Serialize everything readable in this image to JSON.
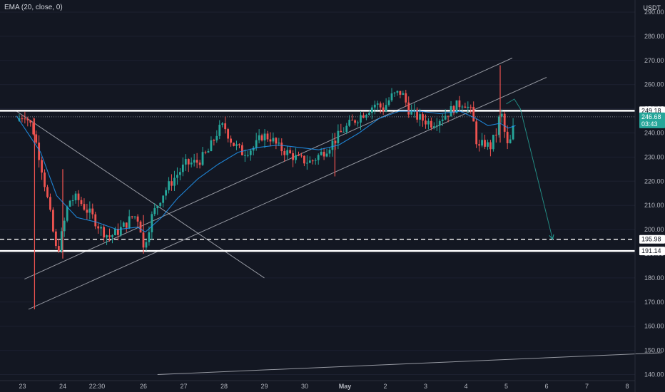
{
  "indicator_label": "EMA (20, close, 0)",
  "currency_label": "USDT",
  "price_tags": {
    "resistance": "249.18",
    "current": "246.68",
    "countdown": "03:43",
    "support_dashed": "195.98",
    "support": "191.14"
  },
  "colors": {
    "background": "#131722",
    "up": "#26a69a",
    "down": "#ef5350",
    "ema": "#2196f3",
    "level": "#ffffff",
    "arrow": "#26a69a"
  },
  "chart_data": {
    "type": "candlestick",
    "ylim": [
      137.5,
      295
    ],
    "y_ticks": [
      140,
      150,
      160,
      170,
      180,
      190,
      200,
      210,
      220,
      230,
      240,
      250,
      260,
      270,
      280,
      290
    ],
    "x_ticks": [
      {
        "label": "23",
        "t": 0.15
      },
      {
        "label": "24",
        "t": 1.15
      },
      {
        "label": "22:30",
        "t": 2.0
      },
      {
        "label": "26",
        "t": 3.15
      },
      {
        "label": "27",
        "t": 4.15
      },
      {
        "label": "28",
        "t": 5.15
      },
      {
        "label": "29",
        "t": 6.15
      },
      {
        "label": "30",
        "t": 7.15
      },
      {
        "label": "May",
        "t": 8.15
      },
      {
        "label": "2",
        "t": 9.15
      },
      {
        "label": "3",
        "t": 10.15
      },
      {
        "label": "4",
        "t": 11.15
      },
      {
        "label": "5",
        "t": 12.15
      },
      {
        "label": "6",
        "t": 13.15
      },
      {
        "label": "7",
        "t": 14.15
      },
      {
        "label": "8",
        "t": 15.15
      }
    ],
    "price_path": [
      [
        0.0,
        245
      ],
      [
        0.2,
        248
      ],
      [
        0.4,
        242
      ],
      [
        0.6,
        228
      ],
      [
        0.8,
        210
      ],
      [
        1.0,
        190
      ],
      [
        1.1,
        196
      ],
      [
        1.3,
        212
      ],
      [
        1.5,
        213
      ],
      [
        1.7,
        209
      ],
      [
        1.9,
        205
      ],
      [
        2.1,
        200
      ],
      [
        2.3,
        197
      ],
      [
        2.5,
        199
      ],
      [
        2.7,
        202
      ],
      [
        2.9,
        206
      ],
      [
        3.05,
        204
      ],
      [
        3.15,
        192
      ],
      [
        3.35,
        205
      ],
      [
        3.6,
        214
      ],
      [
        3.9,
        221
      ],
      [
        4.2,
        227
      ],
      [
        4.5,
        228
      ],
      [
        4.75,
        232
      ],
      [
        5.0,
        241
      ],
      [
        5.15,
        243
      ],
      [
        5.35,
        236
      ],
      [
        5.6,
        232
      ],
      [
        5.9,
        234
      ],
      [
        6.1,
        239
      ],
      [
        6.3,
        238
      ],
      [
        6.5,
        234
      ],
      [
        6.7,
        232
      ],
      [
        7.0,
        229
      ],
      [
        7.3,
        228
      ],
      [
        7.6,
        232
      ],
      [
        7.9,
        237
      ],
      [
        8.1,
        241
      ],
      [
        8.3,
        244
      ],
      [
        8.6,
        248
      ],
      [
        8.9,
        252
      ],
      [
        9.1,
        250
      ],
      [
        9.3,
        255
      ],
      [
        9.55,
        257
      ],
      [
        9.75,
        249
      ],
      [
        10.0,
        246
      ],
      [
        10.3,
        244
      ],
      [
        10.6,
        247
      ],
      [
        10.9,
        251
      ],
      [
        11.1,
        253
      ],
      [
        11.3,
        248
      ],
      [
        11.45,
        233
      ],
      [
        11.6,
        236
      ],
      [
        11.75,
        234
      ],
      [
        11.95,
        242
      ],
      [
        12.0,
        251
      ],
      [
        12.1,
        241
      ],
      [
        12.2,
        233
      ],
      [
        12.3,
        240
      ],
      [
        12.38,
        246.68
      ]
    ],
    "wicks": [
      {
        "t": 0.45,
        "low": 167,
        "high": 246
      },
      {
        "t": 1.15,
        "low": 188,
        "high": 225
      },
      {
        "t": 3.15,
        "low": 190,
        "high": 206
      },
      {
        "t": 7.9,
        "low": 222,
        "high": 240
      },
      {
        "t": 12.0,
        "low": 236,
        "high": 268
      }
    ],
    "ema_path": [
      [
        0.0,
        247
      ],
      [
        0.6,
        232
      ],
      [
        1.0,
        214
      ],
      [
        1.5,
        205
      ],
      [
        2.0,
        203
      ],
      [
        2.5,
        200
      ],
      [
        3.0,
        201
      ],
      [
        3.2,
        199
      ],
      [
        3.6,
        205
      ],
      [
        4.0,
        213
      ],
      [
        4.5,
        221
      ],
      [
        5.0,
        227
      ],
      [
        5.5,
        232
      ],
      [
        6.0,
        234
      ],
      [
        6.5,
        235
      ],
      [
        7.0,
        234
      ],
      [
        7.5,
        233
      ],
      [
        8.0,
        235
      ],
      [
        8.5,
        240
      ],
      [
        9.0,
        246
      ],
      [
        9.5,
        249
      ],
      [
        10.0,
        249
      ],
      [
        10.5,
        248
      ],
      [
        11.0,
        249
      ],
      [
        11.4,
        246
      ],
      [
        11.7,
        243
      ],
      [
        12.0,
        244
      ],
      [
        12.2,
        242
      ],
      [
        12.38,
        243
      ]
    ],
    "levels": [
      {
        "price": 249.18,
        "style": "solid"
      },
      {
        "price": 195.98,
        "style": "dashed"
      },
      {
        "price": 191.14,
        "style": "solid"
      }
    ],
    "trendlines": [
      {
        "from": [
          0.0,
          249
        ],
        "to": [
          6.15,
          180
        ]
      },
      {
        "from": [
          0.3,
          167
        ],
        "to": [
          13.15,
          263
        ]
      },
      {
        "from": [
          0.2,
          179.5
        ],
        "to": [
          12.3,
          271
        ]
      },
      {
        "from": [
          3.5,
          140
        ],
        "to": [
          16.0,
          149
        ]
      }
    ],
    "projection": {
      "points": [
        [
          12.15,
          252
        ],
        [
          12.35,
          254
        ],
        [
          12.5,
          250
        ],
        [
          13.3,
          196
        ]
      ]
    }
  }
}
